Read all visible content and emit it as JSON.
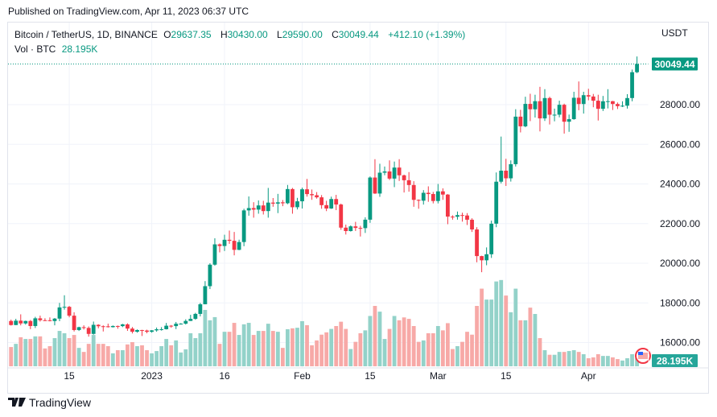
{
  "published": "Published on TradingView.com, Apr 11, 2023 06:37 UTC",
  "legend": {
    "symbol": "Bitcoin / TetherUS, 1D, BINANCE",
    "o_label": "O",
    "o": "29637.35",
    "h_label": "H",
    "h": "30430.00",
    "l_label": "L",
    "l": "29590.00",
    "c_label": "C",
    "c": "30049.44",
    "change": "+412.10 (+1.39%)",
    "vol_label": "Vol · BTC",
    "vol": "28.195K"
  },
  "footer": {
    "brand": "TradingView"
  },
  "colors": {
    "up": "#089981",
    "down": "#f23645",
    "vol_up": "#93d2c9",
    "vol_down": "#f7a9a7",
    "grid": "#f0f3fa"
  },
  "chart_data": {
    "type": "candlestick",
    "currency_label": "USDT",
    "last_price_label": "30049.44",
    "last_volume_label": "28.195K",
    "y_ticks": [
      "28000.00",
      "26000.00",
      "24000.00",
      "22000.00",
      "20000.00",
      "18000.00",
      "16000.00"
    ],
    "y_tick_values": [
      28000,
      26000,
      24000,
      22000,
      20000,
      18000,
      16000
    ],
    "ylim": [
      15000,
      31500
    ],
    "x_ticks": [
      {
        "label": "15",
        "date": "2022-12-15"
      },
      {
        "label": "2023",
        "date": "2023-01-01"
      },
      {
        "label": "16",
        "date": "2023-01-16"
      },
      {
        "label": "Feb",
        "date": "2023-02-01"
      },
      {
        "label": "15",
        "date": "2023-02-15"
      },
      {
        "label": "Mar",
        "date": "2023-03-01"
      },
      {
        "label": "15",
        "date": "2023-03-15"
      },
      {
        "label": "Apr",
        "date": "2023-04-01"
      }
    ],
    "grid": true,
    "columns": [
      "date",
      "open",
      "high",
      "low",
      "close",
      "volume_k"
    ],
    "start_date": "2022-12-03",
    "candles": [
      [
        17090,
        17158,
        16860,
        16885,
        67
      ],
      [
        16885,
        17200,
        16880,
        17105,
        78
      ],
      [
        17105,
        17425,
        16870,
        16966,
        101
      ],
      [
        16966,
        17107,
        16906,
        17089,
        95
      ],
      [
        17089,
        17140,
        16680,
        16836,
        95
      ],
      [
        16836,
        17300,
        16735,
        17224,
        104
      ],
      [
        17224,
        17360,
        17060,
        17128,
        104
      ],
      [
        17128,
        17227,
        17090,
        17127,
        62
      ],
      [
        17127,
        17270,
        17071,
        17086,
        70
      ],
      [
        17086,
        17240,
        16870,
        17209,
        98
      ],
      [
        17209,
        18000,
        17080,
        17774,
        123
      ],
      [
        17774,
        18387,
        17660,
        17803,
        115
      ],
      [
        17803,
        17850,
        17276,
        17357,
        98
      ],
      [
        17357,
        17530,
        16560,
        16633,
        109
      ],
      [
        16633,
        16800,
        16585,
        16777,
        64
      ],
      [
        16777,
        16870,
        16660,
        16739,
        50
      ],
      [
        16739,
        16815,
        16300,
        16438,
        78
      ],
      [
        16438,
        17060,
        16400,
        16896,
        109
      ],
      [
        16896,
        16925,
        16720,
        16825,
        78
      ],
      [
        16825,
        16868,
        16560,
        16821,
        78
      ],
      [
        16821,
        16955,
        16760,
        16779,
        70
      ],
      [
        16779,
        16865,
        16760,
        16837,
        45
      ],
      [
        16837,
        16860,
        16700,
        16830,
        56
      ],
      [
        16830,
        16945,
        16780,
        16919,
        56
      ],
      [
        16919,
        16970,
        16590,
        16706,
        76
      ],
      [
        16706,
        16785,
        16460,
        16547,
        84
      ],
      [
        16547,
        16665,
        16500,
        16633,
        70
      ],
      [
        16633,
        16644,
        16333,
        16607,
        73
      ],
      [
        16607,
        16650,
        16470,
        16543,
        56
      ],
      [
        16543,
        16630,
        16500,
        16617,
        45
      ],
      [
        16617,
        16760,
        16550,
        16673,
        53
      ],
      [
        16673,
        16780,
        16605,
        16674,
        70
      ],
      [
        16674,
        16990,
        16660,
        16851,
        95
      ],
      [
        16851,
        16885,
        16750,
        16832,
        73
      ],
      [
        16832,
        17040,
        16680,
        16951,
        90
      ],
      [
        16951,
        16980,
        16910,
        16955,
        48
      ],
      [
        16955,
        17175,
        16910,
        17092,
        59
      ],
      [
        17092,
        17400,
        17090,
        17196,
        115
      ],
      [
        17196,
        17500,
        17150,
        17446,
        98
      ],
      [
        17446,
        18000,
        17320,
        17934,
        115
      ],
      [
        17934,
        19100,
        17930,
        18846,
        196
      ],
      [
        18846,
        20000,
        18700,
        19930,
        160
      ],
      [
        19930,
        21260,
        19880,
        20954,
        171
      ],
      [
        20954,
        21000,
        20550,
        20871,
        78
      ],
      [
        20871,
        21440,
        20620,
        21185,
        120
      ],
      [
        21185,
        21650,
        20980,
        21134,
        120
      ],
      [
        21134,
        21580,
        20400,
        20677,
        151
      ],
      [
        20677,
        21190,
        20660,
        21071,
        109
      ],
      [
        21071,
        22750,
        20860,
        22667,
        146
      ],
      [
        22667,
        23370,
        22400,
        22784,
        151
      ],
      [
        22784,
        23080,
        22300,
        22707,
        109
      ],
      [
        22707,
        23170,
        22500,
        22917,
        123
      ],
      [
        22917,
        23150,
        22460,
        22633,
        123
      ],
      [
        22633,
        23800,
        22300,
        23060,
        148
      ],
      [
        23060,
        23290,
        22850,
        23009,
        123
      ],
      [
        23009,
        23500,
        22530,
        23074,
        120
      ],
      [
        23074,
        23190,
        22880,
        23027,
        64
      ],
      [
        23027,
        23950,
        22980,
        23743,
        129
      ],
      [
        23743,
        23800,
        22500,
        22827,
        132
      ],
      [
        22827,
        23300,
        22715,
        23125,
        134
      ],
      [
        23125,
        23815,
        22760,
        23732,
        157
      ],
      [
        23732,
        24255,
        23360,
        23488,
        143
      ],
      [
        23488,
        23720,
        23200,
        23431,
        73
      ],
      [
        23431,
        23590,
        23260,
        23326,
        90
      ],
      [
        23326,
        23440,
        22750,
        22932,
        110
      ],
      [
        22932,
        23150,
        22630,
        22762,
        118
      ],
      [
        22762,
        23360,
        22740,
        23240,
        130
      ],
      [
        23240,
        23450,
        22680,
        22964,
        140
      ],
      [
        22964,
        23010,
        21690,
        21797,
        155
      ],
      [
        21797,
        21950,
        21450,
        21625,
        130
      ],
      [
        21625,
        21910,
        21600,
        21862,
        60
      ],
      [
        21862,
        22090,
        21630,
        21783,
        85
      ],
      [
        21783,
        21890,
        21350,
        21773,
        115
      ],
      [
        21773,
        22320,
        21530,
        22199,
        125
      ],
      [
        22199,
        24380,
        22040,
        24324,
        175
      ],
      [
        24324,
        25250,
        23500,
        23517,
        210
      ],
      [
        23517,
        25020,
        23350,
        24569,
        190
      ],
      [
        24569,
        24880,
        24440,
        24631,
        95
      ],
      [
        24631,
        25190,
        24200,
        24271,
        130
      ],
      [
        24271,
        25130,
        23840,
        24827,
        175
      ],
      [
        24827,
        25250,
        24150,
        24437,
        160
      ],
      [
        24437,
        24470,
        23570,
        24188,
        170
      ],
      [
        24188,
        24600,
        23610,
        23947,
        165
      ],
      [
        23947,
        24140,
        22850,
        23198,
        140
      ],
      [
        23198,
        23220,
        22750,
        23157,
        85
      ],
      [
        23157,
        23690,
        22960,
        23554,
        90
      ],
      [
        23554,
        23880,
        23100,
        23492,
        115
      ],
      [
        23492,
        23600,
        23020,
        23141,
        115
      ],
      [
        23141,
        24000,
        23020,
        23628,
        140
      ],
      [
        23628,
        23780,
        23200,
        23465,
        125
      ],
      [
        23465,
        23490,
        21970,
        22354,
        150
      ],
      [
        22354,
        22420,
        22200,
        22346,
        60
      ],
      [
        22346,
        22610,
        22200,
        22430,
        70
      ],
      [
        22430,
        22550,
        22100,
        22410,
        85
      ],
      [
        22410,
        22530,
        21930,
        22197,
        120
      ],
      [
        22197,
        22270,
        21580,
        21705,
        110
      ],
      [
        21705,
        21820,
        20050,
        20362,
        210
      ],
      [
        20362,
        20380,
        19550,
        20150,
        270
      ],
      [
        20150,
        20800,
        19900,
        20455,
        232
      ],
      [
        20455,
        22150,
        20270,
        21997,
        232
      ],
      [
        21997,
        24580,
        21820,
        24114,
        295
      ],
      [
        24114,
        26390,
        24030,
        24670,
        300
      ],
      [
        24670,
        25270,
        23900,
        24285,
        246
      ],
      [
        24285,
        25190,
        24120,
        24998,
        188
      ],
      [
        24998,
        27770,
        24880,
        27395,
        270
      ],
      [
        27395,
        27740,
        26600,
        26907,
        160
      ],
      [
        26907,
        28400,
        26860,
        28038,
        160
      ],
      [
        28038,
        28550,
        27170,
        27767,
        204
      ],
      [
        27767,
        28500,
        27350,
        28175,
        182
      ],
      [
        28175,
        28900,
        26650,
        27307,
        98
      ],
      [
        27307,
        28780,
        27180,
        28333,
        56
      ],
      [
        28333,
        28400,
        27000,
        27493,
        40
      ],
      [
        27494,
        27800,
        27160,
        27494,
        40
      ],
      [
        27494,
        28200,
        27360,
        27994,
        50
      ],
      [
        27994,
        28050,
        26540,
        27139,
        50
      ],
      [
        27139,
        27500,
        26630,
        27268,
        53
      ],
      [
        27268,
        28650,
        27240,
        28348,
        56
      ],
      [
        28348,
        29170,
        27720,
        28033,
        50
      ],
      [
        28033,
        28650,
        27550,
        28478,
        42
      ],
      [
        28478,
        28800,
        28220,
        28411,
        28
      ],
      [
        28411,
        28540,
        27870,
        28199,
        31
      ],
      [
        28199,
        28500,
        27200,
        27790,
        42
      ],
      [
        27790,
        28440,
        27680,
        28170,
        36
      ],
      [
        28170,
        28780,
        27810,
        28175,
        36
      ],
      [
        28175,
        28190,
        27730,
        28033,
        31
      ],
      [
        28033,
        28110,
        27780,
        27925,
        25
      ],
      [
        27925,
        28170,
        27880,
        27947,
        20
      ],
      [
        27947,
        28530,
        27800,
        28333,
        28
      ],
      [
        28333,
        29770,
        28170,
        29637,
        42
      ],
      [
        29637,
        30430,
        29590,
        30049.44,
        28.195
      ]
    ]
  }
}
